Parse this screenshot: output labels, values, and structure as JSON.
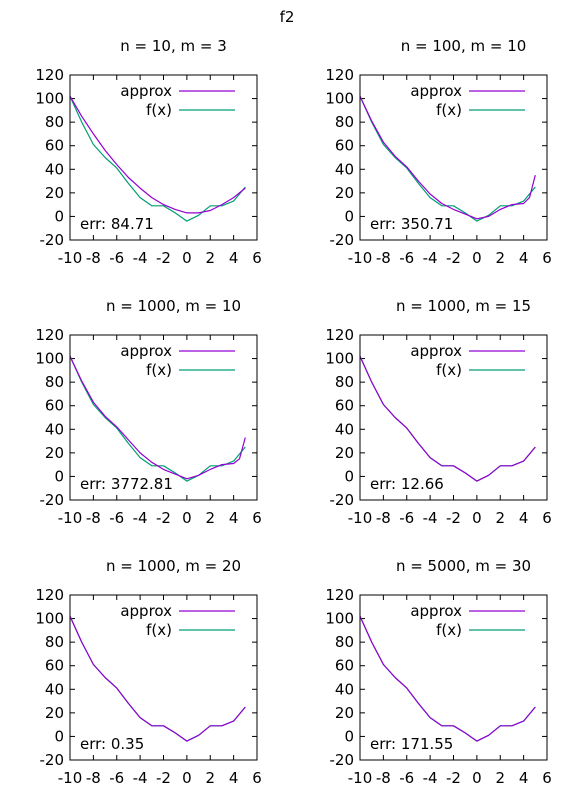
{
  "figure_title": "f2",
  "chart_data": [
    {
      "type": "line",
      "title": "n = 10, m = 3",
      "xlim": [
        -10,
        6
      ],
      "ylim": [
        -20,
        120
      ],
      "xticks": [
        "-10",
        "-8",
        "-6",
        "-4",
        "-2",
        "0",
        "2",
        "4",
        "6"
      ],
      "yticks": [
        "-20",
        "0",
        "20",
        "40",
        "60",
        "80",
        "100",
        "120"
      ],
      "legend_position": "top-right",
      "error_label": "err: 84.71",
      "series": [
        {
          "name": "approx",
          "color": "#9400d3",
          "x": [
            -10,
            -9,
            -8,
            -7,
            -6,
            -5,
            -4,
            -3,
            -2,
            -1,
            0,
            1,
            2,
            3,
            4,
            5
          ],
          "y": [
            102,
            85,
            70,
            56,
            44,
            33,
            24,
            16,
            10,
            6,
            3,
            3,
            5,
            10,
            16,
            24
          ]
        },
        {
          "name": "f(x)",
          "color": "#009e73",
          "x": [
            -10,
            -9,
            -8,
            -7,
            -6,
            -5,
            -4,
            -3,
            -2,
            -1,
            0,
            1,
            2,
            3,
            4,
            5
          ],
          "y": [
            102,
            80,
            61,
            50,
            41,
            28,
            16,
            9,
            9,
            3,
            -4,
            1,
            9,
            9,
            13,
            25
          ]
        }
      ]
    },
    {
      "type": "line",
      "title": "n = 100, m = 10",
      "xlim": [
        -10,
        6
      ],
      "ylim": [
        -20,
        120
      ],
      "xticks": [
        "-10",
        "-8",
        "-6",
        "-4",
        "-2",
        "0",
        "2",
        "4",
        "6"
      ],
      "yticks": [
        "-20",
        "0",
        "20",
        "40",
        "60",
        "80",
        "100",
        "120"
      ],
      "legend_position": "top-right",
      "error_label": "err: 350.71",
      "series": [
        {
          "name": "approx",
          "color": "#9400d3",
          "x": [
            -10,
            -9,
            -8,
            -7,
            -6,
            -5,
            -4,
            -3,
            -2,
            -1,
            0,
            1,
            2,
            3,
            4,
            4.5,
            5
          ],
          "y": [
            102,
            81,
            63,
            51,
            42,
            30,
            19,
            11,
            6,
            2,
            -2,
            0,
            6,
            10,
            11,
            16,
            35
          ]
        },
        {
          "name": "f(x)",
          "color": "#009e73",
          "x": [
            -10,
            -9,
            -8,
            -7,
            -6,
            -5,
            -4,
            -3,
            -2,
            -1,
            0,
            1,
            2,
            3,
            4,
            5
          ],
          "y": [
            102,
            80,
            61,
            50,
            41,
            28,
            16,
            9,
            9,
            3,
            -4,
            1,
            9,
            9,
            13,
            25
          ]
        }
      ]
    },
    {
      "type": "line",
      "title": "n = 1000, m = 10",
      "xlim": [
        -10,
        6
      ],
      "ylim": [
        -20,
        120
      ],
      "xticks": [
        "-10",
        "-8",
        "-6",
        "-4",
        "-2",
        "0",
        "2",
        "4",
        "6"
      ],
      "yticks": [
        "-20",
        "0",
        "20",
        "40",
        "60",
        "80",
        "100",
        "120"
      ],
      "legend_position": "top-right",
      "error_label": "err: 3772.81",
      "series": [
        {
          "name": "approx",
          "color": "#9400d3",
          "x": [
            -10,
            -9,
            -8,
            -7,
            -6,
            -5,
            -4,
            -3,
            -2,
            -1,
            0,
            1,
            2,
            3,
            4,
            4.5,
            5
          ],
          "y": [
            102,
            81,
            63,
            51,
            42,
            31,
            20,
            12,
            6,
            2,
            -2,
            1,
            6,
            10,
            11,
            15,
            33
          ]
        },
        {
          "name": "f(x)",
          "color": "#009e73",
          "x": [
            -10,
            -9,
            -8,
            -7,
            -6,
            -5,
            -4,
            -3,
            -2,
            -1,
            0,
            1,
            2,
            3,
            4,
            5
          ],
          "y": [
            102,
            80,
            61,
            50,
            41,
            28,
            16,
            9,
            9,
            3,
            -4,
            1,
            9,
            9,
            13,
            25
          ]
        }
      ]
    },
    {
      "type": "line",
      "title": "n = 1000, m = 15",
      "xlim": [
        -10,
        6
      ],
      "ylim": [
        -20,
        120
      ],
      "xticks": [
        "-10",
        "-8",
        "-6",
        "-4",
        "-2",
        "0",
        "2",
        "4",
        "6"
      ],
      "yticks": [
        "-20",
        "0",
        "20",
        "40",
        "60",
        "80",
        "100",
        "120"
      ],
      "legend_position": "top-right",
      "error_label": "err: 12.66",
      "series": [
        {
          "name": "approx",
          "color": "#9400d3",
          "x": [
            -10,
            -9,
            -8,
            -7,
            -6,
            -5,
            -4,
            -3,
            -2,
            -1,
            0,
            1,
            2,
            3,
            4,
            5
          ],
          "y": [
            102,
            80,
            61,
            50,
            41,
            28,
            16,
            9,
            9,
            3,
            -4,
            1,
            9,
            9,
            13,
            25
          ]
        },
        {
          "name": "f(x)",
          "color": "#009e73",
          "x": [
            -10,
            -9,
            -8,
            -7,
            -6,
            -5,
            -4,
            -3,
            -2,
            -1,
            0,
            1,
            2,
            3,
            4,
            5
          ],
          "y": [
            102,
            80,
            61,
            50,
            41,
            28,
            16,
            9,
            9,
            3,
            -4,
            1,
            9,
            9,
            13,
            25
          ]
        }
      ]
    },
    {
      "type": "line",
      "title": "n = 1000, m = 20",
      "xlim": [
        -10,
        6
      ],
      "ylim": [
        -20,
        120
      ],
      "xticks": [
        "-10",
        "-8",
        "-6",
        "-4",
        "-2",
        "0",
        "2",
        "4",
        "6"
      ],
      "yticks": [
        "-20",
        "0",
        "20",
        "40",
        "60",
        "80",
        "100",
        "120"
      ],
      "legend_position": "top-right",
      "error_label": "err: 0.35",
      "series": [
        {
          "name": "approx",
          "color": "#9400d3",
          "x": [
            -10,
            -9,
            -8,
            -7,
            -6,
            -5,
            -4,
            -3,
            -2,
            -1,
            0,
            1,
            2,
            3,
            4,
            5
          ],
          "y": [
            102,
            80,
            61,
            50,
            41,
            28,
            16,
            9,
            9,
            3,
            -4,
            1,
            9,
            9,
            13,
            25
          ]
        },
        {
          "name": "f(x)",
          "color": "#009e73",
          "x": [
            -10,
            -9,
            -8,
            -7,
            -6,
            -5,
            -4,
            -3,
            -2,
            -1,
            0,
            1,
            2,
            3,
            4,
            5
          ],
          "y": [
            102,
            80,
            61,
            50,
            41,
            28,
            16,
            9,
            9,
            3,
            -4,
            1,
            9,
            9,
            13,
            25
          ]
        }
      ]
    },
    {
      "type": "line",
      "title": "n = 5000, m = 30",
      "xlim": [
        -10,
        6
      ],
      "ylim": [
        -20,
        120
      ],
      "xticks": [
        "-10",
        "-8",
        "-6",
        "-4",
        "-2",
        "0",
        "2",
        "4",
        "6"
      ],
      "yticks": [
        "-20",
        "0",
        "20",
        "40",
        "60",
        "80",
        "100",
        "120"
      ],
      "legend_position": "top-right",
      "error_label": "err: 171.55",
      "series": [
        {
          "name": "approx",
          "color": "#9400d3",
          "x": [
            -10,
            -9,
            -8,
            -7,
            -6,
            -5,
            -4,
            -3,
            -2,
            -1,
            0,
            1,
            2,
            3,
            4,
            5
          ],
          "y": [
            102,
            80,
            61,
            50,
            41,
            28,
            16,
            9,
            9,
            3,
            -4,
            1,
            9,
            9,
            13,
            25
          ]
        },
        {
          "name": "f(x)",
          "color": "#009e73",
          "x": [
            -10,
            -9,
            -8,
            -7,
            -6,
            -5,
            -4,
            -3,
            -2,
            -1,
            0,
            1,
            2,
            3,
            4,
            5
          ],
          "y": [
            102,
            80,
            61,
            50,
            41,
            28,
            16,
            9,
            9,
            3,
            -4,
            1,
            9,
            9,
            13,
            25
          ]
        }
      ]
    }
  ]
}
